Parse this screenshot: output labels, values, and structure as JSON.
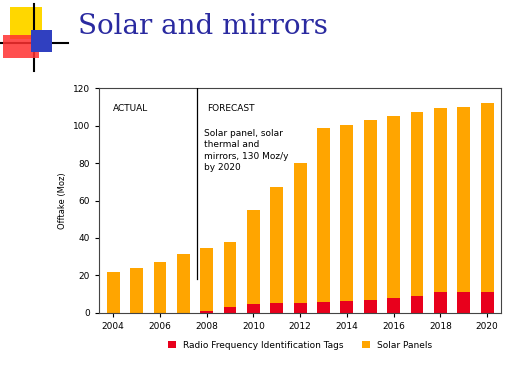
{
  "chart_data": {
    "type": "bar",
    "stacked": true,
    "title": "Solar and mirrors",
    "y_label": "Offtake (Moz)",
    "x": [
      2004,
      2005,
      2006,
      2007,
      2008,
      2009,
      2010,
      2011,
      2012,
      2013,
      2014,
      2015,
      2016,
      2017,
      2018,
      2019,
      2020
    ],
    "series": [
      {
        "name": "Radio Frequency Identification Tags",
        "color": "#e8001c",
        "values": [
          0,
          0,
          0,
          0,
          1,
          3,
          4.5,
          5,
          5.5,
          6,
          6.5,
          7,
          8,
          9,
          11,
          11,
          11
        ]
      },
      {
        "name": "Solar Panels",
        "color": "#ffa500",
        "values": [
          22,
          24,
          27,
          31.5,
          33.5,
          35,
          50.5,
          62,
          74.5,
          92.5,
          94,
          96,
          97,
          98.5,
          98.5,
          99,
          101
        ]
      }
    ],
    "xlim": [
      2003.4,
      2020.6
    ],
    "xticks": [
      2004,
      2006,
      2008,
      2010,
      2012,
      2014,
      2016,
      2018,
      2020
    ],
    "ylim": [
      0,
      120
    ],
    "yticks": [
      0,
      20,
      40,
      60,
      80,
      100,
      120
    ],
    "annotations": [
      "ACTUAL",
      "FORECAST",
      "Solar panel, solar\nthermal and\nmirrors, 130 Moz/y\nby 2020"
    ],
    "legend": "lower center",
    "grid": false
  }
}
